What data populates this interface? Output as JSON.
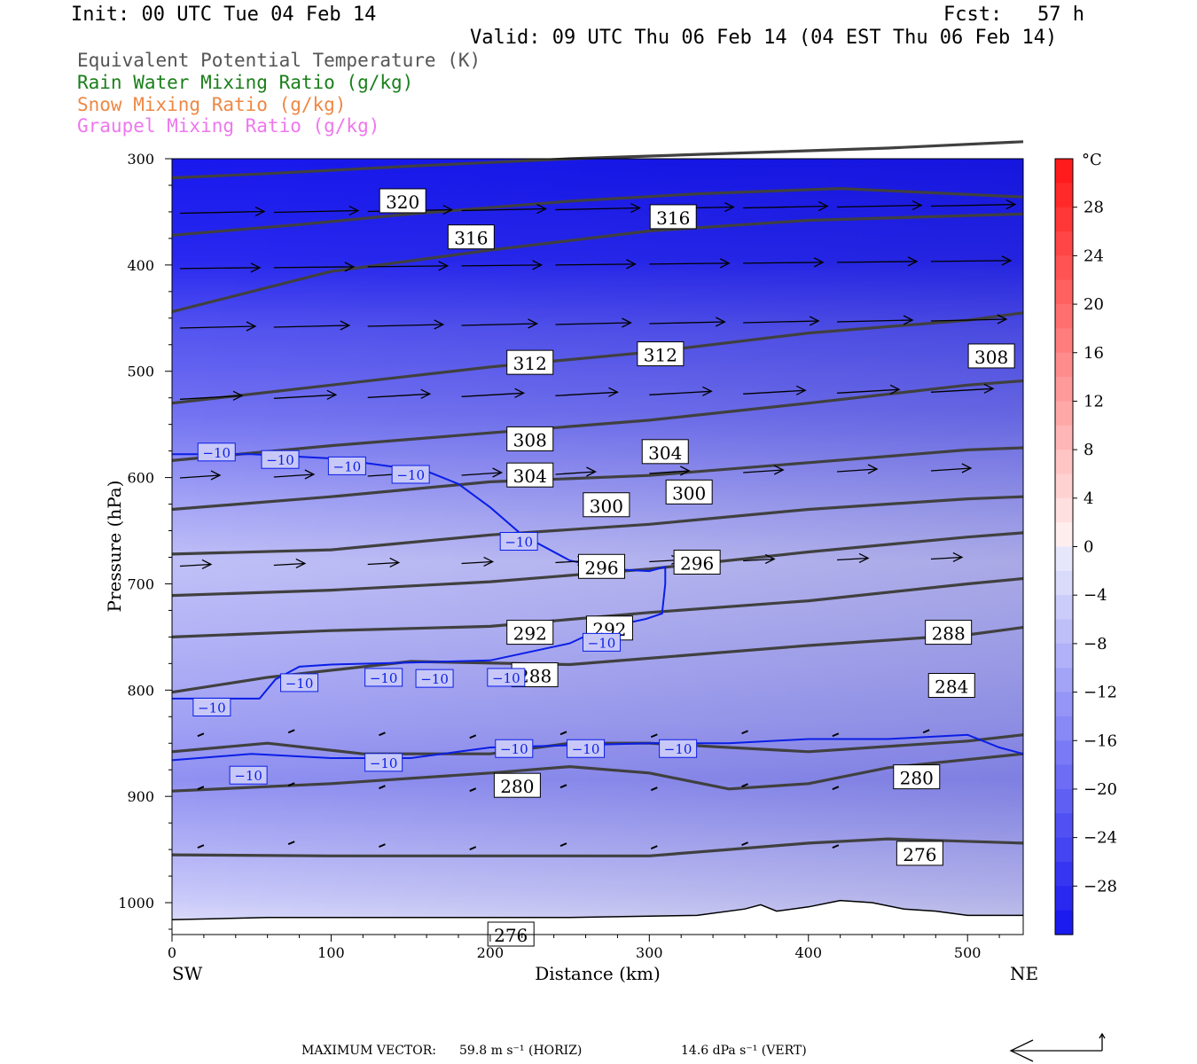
{
  "header": {
    "init": "Init: 00 UTC Tue 04 Feb 14",
    "fcst": "Fcst:   57 h",
    "valid": "Valid: 09 UTC Thu 06 Feb 14 (04 EST Thu 06 Feb 14)"
  },
  "legend": [
    {
      "label": "Equivalent Potential Temperature (K)",
      "color": "#555555"
    },
    {
      "label": "Rain Water Mixing Ratio (g/kg)",
      "color": "#1a7f1a"
    },
    {
      "label": "Snow Mixing Ratio (g/kg)",
      "color": "#ee8844"
    },
    {
      "label": "Graupel Mixing Ratio (g/kg)",
      "color": "#ee77ee"
    }
  ],
  "chart_data": {
    "type": "heatmap",
    "xlabel": "Distance (km)",
    "ylabel": "Pressure (hPa)",
    "xlim": [
      0,
      535
    ],
    "ylim": [
      1030,
      300
    ],
    "x_ticks": [
      0,
      100,
      200,
      300,
      400,
      500
    ],
    "y_ticks": [
      300,
      400,
      500,
      600,
      700,
      800,
      900,
      1000
    ],
    "x_end_labels": {
      "left": "SW",
      "right": "NE"
    },
    "colorbar": {
      "unit": "°C",
      "tick_labels": [
        "28",
        "24",
        "20",
        "16",
        "12",
        "8",
        "4",
        "0",
        "−4",
        "−8",
        "−12",
        "−16",
        "−20",
        "−24",
        "−28"
      ],
      "tick_values": [
        28,
        24,
        20,
        16,
        12,
        8,
        4,
        0,
        -4,
        -8,
        -12,
        -16,
        -20,
        -24,
        -28
      ],
      "range": [
        -32,
        32
      ]
    },
    "theta_e_contours": [
      {
        "label": "320",
        "points": [
          [
            0,
            318
          ],
          [
            60,
            314
          ],
          [
            150,
            307
          ],
          [
            250,
            300
          ],
          [
            350,
            295
          ],
          [
            450,
            290
          ],
          [
            535,
            284
          ]
        ]
      },
      {
        "label": "316",
        "points": [
          [
            0,
            372
          ],
          [
            80,
            362
          ],
          [
            150,
            352
          ],
          [
            250,
            340
          ],
          [
            330,
            333
          ],
          [
            420,
            328
          ],
          [
            535,
            336
          ]
        ]
      },
      {
        "label": "316",
        "points": [
          [
            0,
            444
          ],
          [
            100,
            406
          ],
          [
            200,
            386
          ],
          [
            300,
            368
          ],
          [
            400,
            358
          ],
          [
            535,
            352
          ]
        ]
      },
      {
        "label": "312",
        "points": [
          [
            0,
            530
          ],
          [
            100,
            513
          ],
          [
            200,
            496
          ],
          [
            300,
            482
          ],
          [
            400,
            464
          ],
          [
            500,
            452
          ],
          [
            535,
            445
          ]
        ]
      },
      {
        "label": "308",
        "points": [
          [
            0,
            584
          ],
          [
            100,
            570
          ],
          [
            200,
            558
          ],
          [
            300,
            546
          ],
          [
            400,
            530
          ],
          [
            500,
            513
          ],
          [
            535,
            509
          ]
        ]
      },
      {
        "label": "304",
        "points": [
          [
            0,
            630
          ],
          [
            100,
            618
          ],
          [
            200,
            604
          ],
          [
            300,
            598
          ],
          [
            400,
            586
          ],
          [
            500,
            574
          ],
          [
            535,
            572
          ]
        ]
      },
      {
        "label": "300",
        "points": [
          [
            0,
            672
          ],
          [
            100,
            668
          ],
          [
            200,
            654
          ],
          [
            300,
            644
          ],
          [
            400,
            630
          ],
          [
            500,
            620
          ],
          [
            535,
            618
          ]
        ]
      },
      {
        "label": "296",
        "points": [
          [
            0,
            711
          ],
          [
            100,
            706
          ],
          [
            200,
            698
          ],
          [
            300,
            686
          ],
          [
            400,
            670
          ],
          [
            500,
            656
          ],
          [
            535,
            652
          ]
        ]
      },
      {
        "label": "292",
        "points": [
          [
            0,
            750
          ],
          [
            100,
            744
          ],
          [
            200,
            740
          ],
          [
            300,
            727
          ],
          [
            400,
            716
          ],
          [
            500,
            700
          ],
          [
            535,
            695
          ]
        ]
      },
      {
        "label": "288",
        "points": [
          [
            0,
            802
          ],
          [
            60,
            788
          ],
          [
            150,
            773
          ],
          [
            250,
            776
          ],
          [
            300,
            770
          ],
          [
            400,
            758
          ],
          [
            500,
            748
          ],
          [
            535,
            741
          ]
        ]
      },
      {
        "label": "284",
        "points": [
          [
            0,
            858
          ],
          [
            60,
            850
          ],
          [
            120,
            860
          ],
          [
            200,
            860
          ],
          [
            250,
            850
          ],
          [
            300,
            850
          ],
          [
            400,
            858
          ],
          [
            500,
            848
          ],
          [
            535,
            842
          ]
        ]
      },
      {
        "label": "280",
        "points": [
          [
            0,
            895
          ],
          [
            100,
            888
          ],
          [
            200,
            878
          ],
          [
            250,
            872
          ],
          [
            300,
            878
          ],
          [
            350,
            893
          ],
          [
            400,
            888
          ],
          [
            450,
            873
          ],
          [
            535,
            860
          ]
        ]
      },
      {
        "label": "276",
        "points": [
          [
            0,
            955
          ],
          [
            100,
            956
          ],
          [
            200,
            956
          ],
          [
            250,
            956
          ],
          [
            300,
            956
          ],
          [
            350,
            950
          ],
          [
            400,
            944
          ],
          [
            450,
            940
          ],
          [
            535,
            944
          ]
        ]
      }
    ],
    "contour_labels_theta_e": [
      {
        "label": "320",
        "x": 145,
        "p": 340
      },
      {
        "label": "316",
        "x": 188,
        "p": 374
      },
      {
        "label": "316",
        "x": 315,
        "p": 355
      },
      {
        "label": "312",
        "x": 225,
        "p": 492
      },
      {
        "label": "312",
        "x": 307,
        "p": 484
      },
      {
        "label": "308",
        "x": 515,
        "p": 486
      },
      {
        "label": "308",
        "x": 225,
        "p": 564
      },
      {
        "label": "304",
        "x": 225,
        "p": 598
      },
      {
        "label": "304",
        "x": 310,
        "p": 576
      },
      {
        "label": "300",
        "x": 273,
        "p": 626
      },
      {
        "label": "300",
        "x": 325,
        "p": 614
      },
      {
        "label": "296",
        "x": 270,
        "p": 684
      },
      {
        "label": "296",
        "x": 330,
        "p": 680
      },
      {
        "label": "292",
        "x": 225,
        "p": 746
      },
      {
        "label": "292",
        "x": 275,
        "p": 742
      },
      {
        "label": "288",
        "x": 228,
        "p": 786
      },
      {
        "label": "288",
        "x": 488,
        "p": 746
      },
      {
        "label": "284",
        "x": 490,
        "p": 796
      },
      {
        "label": "280",
        "x": 217,
        "p": 890
      },
      {
        "label": "280",
        "x": 468,
        "p": 882
      },
      {
        "label": "276",
        "x": 470,
        "p": 954
      },
      {
        "label": "276",
        "x": 213,
        "p": 1030
      }
    ],
    "isotherm_minus10": [
      {
        "label": "−10",
        "points": [
          [
            0,
            578
          ],
          [
            50,
            578
          ],
          [
            100,
            582
          ],
          [
            140,
            590
          ],
          [
            160,
            594
          ],
          [
            180,
            606
          ],
          [
            200,
            628
          ],
          [
            220,
            654
          ],
          [
            250,
            678
          ],
          [
            275,
            686
          ],
          [
            300,
            688
          ],
          [
            310,
            684
          ],
          [
            310,
            700
          ],
          [
            308,
            728
          ],
          [
            298,
            733
          ],
          [
            270,
            742
          ],
          [
            250,
            756
          ],
          [
            200,
            772
          ],
          [
            150,
            774
          ],
          [
            100,
            776
          ],
          [
            80,
            778
          ],
          [
            65,
            790
          ],
          [
            55,
            808
          ],
          [
            40,
            808
          ],
          [
            0,
            808
          ]
        ]
      },
      {
        "label": "−10",
        "points": [
          [
            0,
            866
          ],
          [
            50,
            860
          ],
          [
            100,
            864
          ],
          [
            150,
            864
          ],
          [
            180,
            858
          ],
          [
            200,
            854
          ],
          [
            250,
            852
          ],
          [
            300,
            850
          ],
          [
            350,
            850
          ],
          [
            400,
            846
          ],
          [
            450,
            846
          ],
          [
            500,
            842
          ],
          [
            520,
            854
          ],
          [
            535,
            860
          ]
        ]
      }
    ],
    "isotherm_labels": [
      {
        "label": "−10",
        "x": 28,
        "p": 576
      },
      {
        "label": "−10",
        "x": 68,
        "p": 583
      },
      {
        "label": "−10",
        "x": 110,
        "p": 589
      },
      {
        "label": "−10",
        "x": 150,
        "p": 597
      },
      {
        "label": "−10",
        "x": 218,
        "p": 660
      },
      {
        "label": "−10",
        "x": 270,
        "p": 755
      },
      {
        "label": "−10",
        "x": 80,
        "p": 793
      },
      {
        "label": "−10",
        "x": 133,
        "p": 788
      },
      {
        "label": "−10",
        "x": 165,
        "p": 789
      },
      {
        "label": "−10",
        "x": 210,
        "p": 788
      },
      {
        "label": "−10",
        "x": 25,
        "p": 816
      },
      {
        "label": "−10",
        "x": 215,
        "p": 855
      },
      {
        "label": "−10",
        "x": 260,
        "p": 855
      },
      {
        "label": "−10",
        "x": 318,
        "p": 855
      },
      {
        "label": "−10",
        "x": 133,
        "p": 868
      },
      {
        "label": "−10",
        "x": 48,
        "p": 880
      }
    ],
    "max_vector": {
      "label": "MAXIMUM VECTOR:",
      "horiz": "59.8 m s⁻¹ (HORIZ)",
      "vert": "14.6 dPa s⁻¹ (VERT)"
    }
  }
}
